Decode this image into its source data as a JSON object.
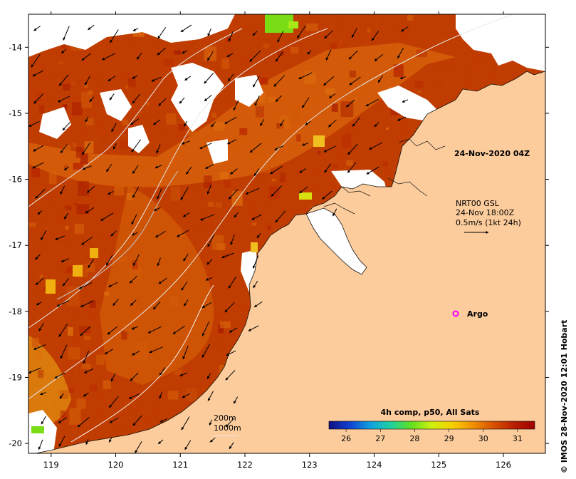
{
  "map": {
    "lon_ticks": [
      "119",
      "120",
      "121",
      "122",
      "123",
      "124",
      "125",
      "126"
    ],
    "lat_ticks": [
      "-14",
      "-15",
      "-16",
      "-17",
      "-18",
      "-19",
      "-20"
    ],
    "lon_range": [
      118.65,
      126.65
    ],
    "lat_range": [
      -20.15,
      -13.5
    ]
  },
  "annotations": {
    "datetime": "24-Nov-2020 04Z",
    "current_source": "NRT00 GSL",
    "current_time": "24-Nov 18:00Z",
    "current_scale": "0.5m/s (1kt 24h)",
    "argo_label": "Argo",
    "isobath_200": "200m",
    "isobath_1000": "1000m",
    "credit": "© IMOS 28-Nov-2020 12:01 Hobart"
  },
  "colorbar": {
    "title": "4h comp, p50, All Sats",
    "labels": [
      "26",
      "27",
      "28",
      "29",
      "30",
      "31"
    ],
    "min": 25.5,
    "max": 31.5,
    "colors": [
      "#101080",
      "#1040d0",
      "#10a0e0",
      "#20d0a0",
      "#60e020",
      "#d0f010",
      "#f8d000",
      "#f09000",
      "#d85000",
      "#b82000",
      "#a00000"
    ]
  },
  "colors": {
    "land": "#fccc9c",
    "sst_warm": "#b82200",
    "sst_mid": "#d25a08",
    "sst_cool": "#f0b010",
    "sst_green": "#7adc14",
    "argo": "#ff00ff"
  },
  "icons": {
    "argo_marker": "circle-marker-icon",
    "current_vector": "arrow-icon"
  }
}
